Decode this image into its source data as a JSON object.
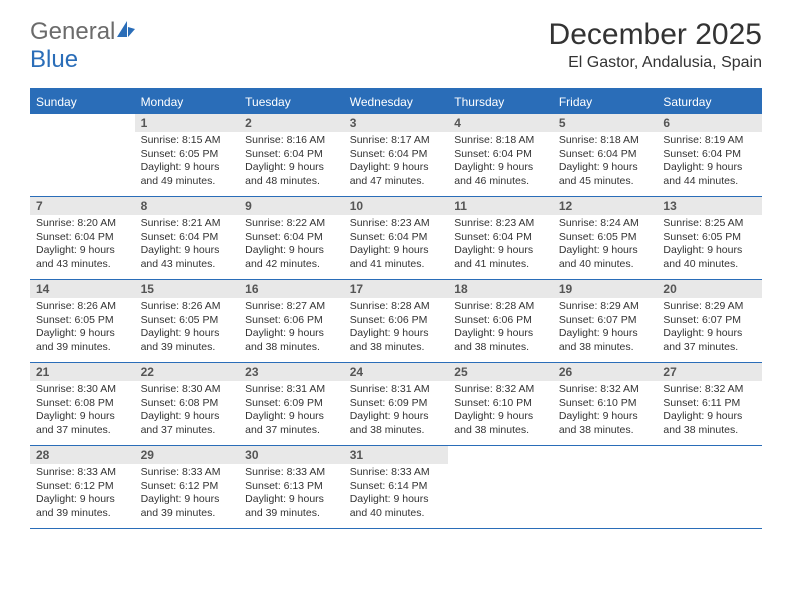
{
  "brand": {
    "part1": "General",
    "part2": "Blue"
  },
  "title": "December 2025",
  "location": "El Gastor, Andalusia, Spain",
  "colors": {
    "accent": "#2a6db8",
    "header_bg": "#2a6db8",
    "daynum_bg": "#e8e8e8"
  },
  "dow": [
    "Sunday",
    "Monday",
    "Tuesday",
    "Wednesday",
    "Thursday",
    "Friday",
    "Saturday"
  ],
  "weeks": [
    [
      {
        "blank": true
      },
      {
        "n": "1",
        "sr": "Sunrise: 8:15 AM",
        "ss": "Sunset: 6:05 PM",
        "d1": "Daylight: 9 hours",
        "d2": "and 49 minutes."
      },
      {
        "n": "2",
        "sr": "Sunrise: 8:16 AM",
        "ss": "Sunset: 6:04 PM",
        "d1": "Daylight: 9 hours",
        "d2": "and 48 minutes."
      },
      {
        "n": "3",
        "sr": "Sunrise: 8:17 AM",
        "ss": "Sunset: 6:04 PM",
        "d1": "Daylight: 9 hours",
        "d2": "and 47 minutes."
      },
      {
        "n": "4",
        "sr": "Sunrise: 8:18 AM",
        "ss": "Sunset: 6:04 PM",
        "d1": "Daylight: 9 hours",
        "d2": "and 46 minutes."
      },
      {
        "n": "5",
        "sr": "Sunrise: 8:18 AM",
        "ss": "Sunset: 6:04 PM",
        "d1": "Daylight: 9 hours",
        "d2": "and 45 minutes."
      },
      {
        "n": "6",
        "sr": "Sunrise: 8:19 AM",
        "ss": "Sunset: 6:04 PM",
        "d1": "Daylight: 9 hours",
        "d2": "and 44 minutes."
      }
    ],
    [
      {
        "n": "7",
        "sr": "Sunrise: 8:20 AM",
        "ss": "Sunset: 6:04 PM",
        "d1": "Daylight: 9 hours",
        "d2": "and 43 minutes."
      },
      {
        "n": "8",
        "sr": "Sunrise: 8:21 AM",
        "ss": "Sunset: 6:04 PM",
        "d1": "Daylight: 9 hours",
        "d2": "and 43 minutes."
      },
      {
        "n": "9",
        "sr": "Sunrise: 8:22 AM",
        "ss": "Sunset: 6:04 PM",
        "d1": "Daylight: 9 hours",
        "d2": "and 42 minutes."
      },
      {
        "n": "10",
        "sr": "Sunrise: 8:23 AM",
        "ss": "Sunset: 6:04 PM",
        "d1": "Daylight: 9 hours",
        "d2": "and 41 minutes."
      },
      {
        "n": "11",
        "sr": "Sunrise: 8:23 AM",
        "ss": "Sunset: 6:04 PM",
        "d1": "Daylight: 9 hours",
        "d2": "and 41 minutes."
      },
      {
        "n": "12",
        "sr": "Sunrise: 8:24 AM",
        "ss": "Sunset: 6:05 PM",
        "d1": "Daylight: 9 hours",
        "d2": "and 40 minutes."
      },
      {
        "n": "13",
        "sr": "Sunrise: 8:25 AM",
        "ss": "Sunset: 6:05 PM",
        "d1": "Daylight: 9 hours",
        "d2": "and 40 minutes."
      }
    ],
    [
      {
        "n": "14",
        "sr": "Sunrise: 8:26 AM",
        "ss": "Sunset: 6:05 PM",
        "d1": "Daylight: 9 hours",
        "d2": "and 39 minutes."
      },
      {
        "n": "15",
        "sr": "Sunrise: 8:26 AM",
        "ss": "Sunset: 6:05 PM",
        "d1": "Daylight: 9 hours",
        "d2": "and 39 minutes."
      },
      {
        "n": "16",
        "sr": "Sunrise: 8:27 AM",
        "ss": "Sunset: 6:06 PM",
        "d1": "Daylight: 9 hours",
        "d2": "and 38 minutes."
      },
      {
        "n": "17",
        "sr": "Sunrise: 8:28 AM",
        "ss": "Sunset: 6:06 PM",
        "d1": "Daylight: 9 hours",
        "d2": "and 38 minutes."
      },
      {
        "n": "18",
        "sr": "Sunrise: 8:28 AM",
        "ss": "Sunset: 6:06 PM",
        "d1": "Daylight: 9 hours",
        "d2": "and 38 minutes."
      },
      {
        "n": "19",
        "sr": "Sunrise: 8:29 AM",
        "ss": "Sunset: 6:07 PM",
        "d1": "Daylight: 9 hours",
        "d2": "and 38 minutes."
      },
      {
        "n": "20",
        "sr": "Sunrise: 8:29 AM",
        "ss": "Sunset: 6:07 PM",
        "d1": "Daylight: 9 hours",
        "d2": "and 37 minutes."
      }
    ],
    [
      {
        "n": "21",
        "sr": "Sunrise: 8:30 AM",
        "ss": "Sunset: 6:08 PM",
        "d1": "Daylight: 9 hours",
        "d2": "and 37 minutes."
      },
      {
        "n": "22",
        "sr": "Sunrise: 8:30 AM",
        "ss": "Sunset: 6:08 PM",
        "d1": "Daylight: 9 hours",
        "d2": "and 37 minutes."
      },
      {
        "n": "23",
        "sr": "Sunrise: 8:31 AM",
        "ss": "Sunset: 6:09 PM",
        "d1": "Daylight: 9 hours",
        "d2": "and 37 minutes."
      },
      {
        "n": "24",
        "sr": "Sunrise: 8:31 AM",
        "ss": "Sunset: 6:09 PM",
        "d1": "Daylight: 9 hours",
        "d2": "and 38 minutes."
      },
      {
        "n": "25",
        "sr": "Sunrise: 8:32 AM",
        "ss": "Sunset: 6:10 PM",
        "d1": "Daylight: 9 hours",
        "d2": "and 38 minutes."
      },
      {
        "n": "26",
        "sr": "Sunrise: 8:32 AM",
        "ss": "Sunset: 6:10 PM",
        "d1": "Daylight: 9 hours",
        "d2": "and 38 minutes."
      },
      {
        "n": "27",
        "sr": "Sunrise: 8:32 AM",
        "ss": "Sunset: 6:11 PM",
        "d1": "Daylight: 9 hours",
        "d2": "and 38 minutes."
      }
    ],
    [
      {
        "n": "28",
        "sr": "Sunrise: 8:33 AM",
        "ss": "Sunset: 6:12 PM",
        "d1": "Daylight: 9 hours",
        "d2": "and 39 minutes."
      },
      {
        "n": "29",
        "sr": "Sunrise: 8:33 AM",
        "ss": "Sunset: 6:12 PM",
        "d1": "Daylight: 9 hours",
        "d2": "and 39 minutes."
      },
      {
        "n": "30",
        "sr": "Sunrise: 8:33 AM",
        "ss": "Sunset: 6:13 PM",
        "d1": "Daylight: 9 hours",
        "d2": "and 39 minutes."
      },
      {
        "n": "31",
        "sr": "Sunrise: 8:33 AM",
        "ss": "Sunset: 6:14 PM",
        "d1": "Daylight: 9 hours",
        "d2": "and 40 minutes."
      },
      {
        "blank": true
      },
      {
        "blank": true
      },
      {
        "blank": true
      }
    ]
  ]
}
